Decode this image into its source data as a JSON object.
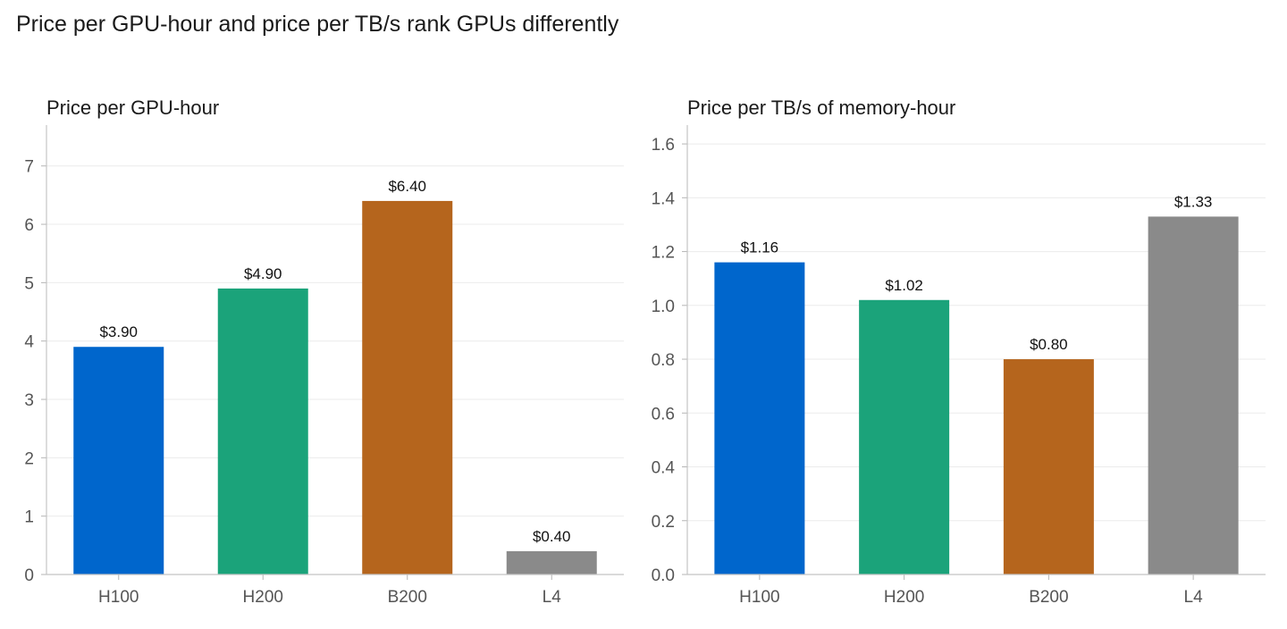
{
  "figure_title": "Price per GPU-hour and price per TB/s rank GPUs differently",
  "colors": {
    "H100": "#0066cc",
    "H200": "#1ba37a",
    "B200": "#b5651d",
    "L4": "#8a8a8a"
  },
  "chart_data": [
    {
      "type": "bar",
      "title": "Price per GPU-hour",
      "categories": [
        "H100",
        "H200",
        "B200",
        "L4"
      ],
      "values": [
        3.9,
        4.9,
        6.4,
        0.4
      ],
      "data_labels": [
        "$3.90",
        "$4.90",
        "$6.40",
        "$0.40"
      ],
      "xlabel": "",
      "ylabel": "",
      "ylim": [
        0,
        7.7
      ],
      "yticks": [
        0,
        1,
        2,
        3,
        4,
        5,
        6,
        7
      ],
      "ytick_labels": [
        "0",
        "1",
        "2",
        "3",
        "4",
        "5",
        "6",
        "7"
      ],
      "grid": "horizontal",
      "legend": "none"
    },
    {
      "type": "bar",
      "title": "Price per TB/s of memory-hour",
      "categories": [
        "H100",
        "H200",
        "B200",
        "L4"
      ],
      "values": [
        1.16,
        1.02,
        0.8,
        1.33
      ],
      "data_labels": [
        "$1.16",
        "$1.02",
        "$0.80",
        "$1.33"
      ],
      "xlabel": "",
      "ylabel": "",
      "ylim": [
        0,
        1.67
      ],
      "yticks": [
        0,
        0.2,
        0.4,
        0.6,
        0.8,
        1.0,
        1.2,
        1.4,
        1.6
      ],
      "ytick_labels": [
        "0.0",
        "0.2",
        "0.4",
        "0.6",
        "0.8",
        "1.0",
        "1.2",
        "1.4",
        "1.6"
      ],
      "grid": "horizontal",
      "legend": "none"
    }
  ]
}
